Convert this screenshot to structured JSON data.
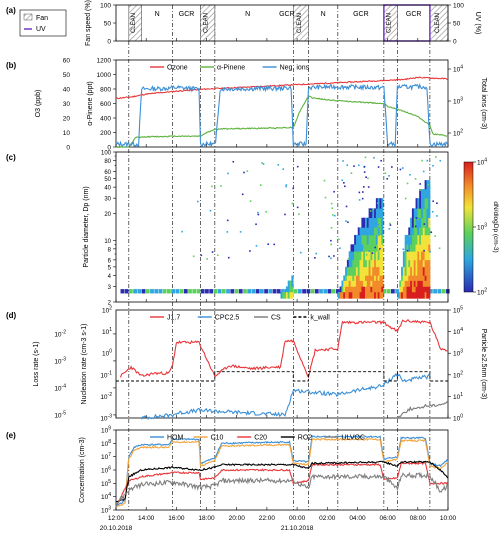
{
  "figure": {
    "date_labels": [
      "20.10.2018",
      "21.10.2018"
    ],
    "time_ticks": [
      "12:00",
      "14:00",
      "16:00",
      "18:00",
      "20:00",
      "22:00",
      "00:00",
      "02:00",
      "04:00",
      "06:00",
      "08:00",
      "10:00"
    ],
    "phase_boundaries_h": [
      12.85,
      15.75,
      17.6,
      18.55,
      23.75,
      24.75,
      26.7,
      29.75,
      30.65,
      32.8
    ]
  },
  "chart_data": [
    {
      "panel": "(a)",
      "type": "area",
      "y_left_label": "Fan speed (%)",
      "y_right_label": "UV (%)",
      "ylim": [
        0,
        100
      ],
      "yticks": [
        0,
        50,
        100
      ],
      "legend": [
        "Fan",
        "UV"
      ],
      "phases": [
        {
          "label": "CLEAN",
          "start": 12.85,
          "end": 13.7
        },
        {
          "label": "N",
          "start": 13.7,
          "end": 15.75
        },
        {
          "label": "GCR",
          "start": 15.75,
          "end": 17.6
        },
        {
          "label": "CLEAN",
          "start": 17.6,
          "end": 18.55
        },
        {
          "label": "N",
          "start": 18.55,
          "end": 22.9
        },
        {
          "label": "GCR",
          "start": 22.9,
          "end": 23.75
        },
        {
          "label": "CLEAN",
          "start": 23.75,
          "end": 24.75
        },
        {
          "label": "N",
          "start": 24.75,
          "end": 26.7
        },
        {
          "label": "GCR",
          "start": 26.7,
          "end": 29.75
        },
        {
          "label": "CLEAN",
          "start": 29.75,
          "end": 30.65
        },
        {
          "label": "GCR",
          "start": 30.65,
          "end": 32.8
        },
        {
          "label": "CLEAN",
          "start": 32.8,
          "end": 34.0
        }
      ],
      "fan_on_intervals": [
        [
          12.85,
          13.7
        ],
        [
          17.6,
          18.55
        ],
        [
          23.75,
          24.75
        ],
        [
          29.75,
          30.65
        ],
        [
          32.8,
          34.0
        ]
      ],
      "uv_on_interval": [
        29.75,
        32.8
      ]
    },
    {
      "panel": "(b)",
      "type": "line",
      "y_left_label": "O3 (ppb)",
      "y_left2_label": "α-Pinene (ppt)",
      "y_right_label": "Total ions (cm-3)",
      "ylim": [
        0,
        1200
      ],
      "yticks": [
        0,
        200,
        400,
        600,
        800,
        1000,
        1200
      ],
      "o3_ticks": [
        0,
        10,
        20,
        30,
        40,
        50,
        60
      ],
      "right_ticks": [
        "10^2",
        "10^3",
        "10^4"
      ],
      "series": [
        {
          "name": "Ozone",
          "color": "#e8363a",
          "x": [
            12.0,
            13.0,
            14.0,
            16.0,
            18.0,
            20.0,
            22.0,
            24.0,
            26.0,
            28.0,
            30.0,
            31.0,
            32.0,
            33.0,
            34.0
          ],
          "y": [
            670,
            690,
            730,
            770,
            800,
            820,
            840,
            860,
            880,
            900,
            920,
            930,
            960,
            950,
            940
          ]
        },
        {
          "name": "α-Pinene",
          "color": "#5cb23c",
          "x": [
            12.0,
            12.85,
            13.3,
            14.0,
            16.0,
            17.6,
            18.0,
            18.55,
            19.0,
            22.0,
            23.75,
            24.2,
            24.75,
            25.0,
            26.0,
            28.0,
            29.75,
            30.0,
            30.65,
            31.0,
            32.0,
            32.8,
            33.0,
            34.0
          ],
          "y": [
            0,
            0,
            130,
            140,
            150,
            150,
            200,
            240,
            250,
            260,
            270,
            500,
            700,
            680,
            650,
            620,
            600,
            560,
            520,
            500,
            420,
            300,
            180,
            150
          ]
        },
        {
          "name": "Neg. ions",
          "color": "#3b8fd6",
          "x": [
            12.0,
            13.5,
            13.7,
            15.5,
            15.75,
            16.0,
            17.5,
            17.6,
            18.6,
            18.9,
            22.5,
            22.9,
            23.6,
            23.75,
            24.0,
            24.6,
            24.75,
            26.5,
            26.7,
            29.5,
            29.75,
            30.0,
            30.5,
            30.65,
            32.6,
            32.8,
            33.5,
            34.0
          ],
          "y": [
            40,
            40,
            800,
            810,
            820,
            820,
            800,
            40,
            40,
            800,
            810,
            810,
            820,
            40,
            40,
            40,
            820,
            830,
            830,
            820,
            820,
            40,
            40,
            830,
            830,
            40,
            40,
            40
          ]
        }
      ]
    },
    {
      "panel": "(c)",
      "type": "heatmap",
      "y_label": "Particle diameter, Dp (nm)",
      "colorbar_label": "dN/dlogDp (cm-3)",
      "yticks": [
        "2",
        "3",
        "4",
        "5",
        "6",
        "7",
        "8",
        "9",
        "10",
        "20",
        "30",
        "40",
        "50",
        "60",
        "70",
        "80",
        "90",
        "100"
      ],
      "colorbar_ticks": [
        "10^2",
        "10^3",
        "10^4"
      ],
      "events": [
        {
          "start": 22.9,
          "end": 23.7,
          "dp_max": 4,
          "intensity": 0.6
        },
        {
          "start": 26.7,
          "end": 29.7,
          "dp_max": 30,
          "intensity": 0.9
        },
        {
          "start": 30.65,
          "end": 32.8,
          "dp_max": 50,
          "intensity": 1.0
        }
      ]
    },
    {
      "panel": "(d)",
      "type": "line",
      "y_left_label": "Loss rate (s-1)",
      "y_left2_label": "Nucleation rate (cm-3 s-1)",
      "y_right_label": "Particle ≥2.5nm (cm-3)",
      "ylim_log": [
        -5,
        2
      ],
      "yticks_left": [
        "10^-5",
        "10^-4",
        "10^-3",
        "10^-2"
      ],
      "yticks_left2": [
        "10^-3",
        "10^-2",
        "10^-1",
        "10^0",
        "10^1",
        "10^2"
      ],
      "yticks_right": [
        "10^0",
        "10^1",
        "10^2",
        "10^3",
        "10^4",
        "10^5"
      ],
      "series": [
        {
          "name": "J1.7",
          "color": "#e8363a",
          "x": [
            12.3,
            13.0,
            13.7,
            14.5,
            15.5,
            15.75,
            16.0,
            17.5,
            18.55,
            19.5,
            21.0,
            22.5,
            22.9,
            23.2,
            23.75,
            24.75,
            25.2,
            26.7,
            27.0,
            29.7,
            30.65,
            31.0,
            32.8,
            33.5,
            34.0
          ],
          "y": [
            -2.3,
            -1.7,
            -2.3,
            -2.1,
            -2.1,
            -1.6,
            -0.1,
            -0.1,
            -2.3,
            -1.6,
            -1.8,
            -1.7,
            -1.7,
            0.0,
            0.0,
            -2.3,
            -0.6,
            -0.5,
            1.2,
            1.2,
            0.6,
            1.3,
            1.2,
            -0.5,
            -0.6
          ]
        },
        {
          "name": "CPC2.5",
          "color": "#3b8fd6",
          "x": [
            13.7,
            15.75,
            16.0,
            17.5,
            23.2,
            23.75,
            26.7,
            27.5,
            29.7,
            30.65,
            31.0,
            32.8
          ],
          "y": [
            -5.0,
            -4.8,
            -4.7,
            -4.5,
            -4.8,
            -3.2,
            -3.5,
            -3.3,
            -2.9,
            -2.1,
            -2.6,
            -2.3
          ]
        },
        {
          "name": "CS",
          "color": "#7a7a7a",
          "x": [
            30.65,
            31.0,
            31.5,
            32.0,
            32.5,
            33.0,
            34.0
          ],
          "y": [
            -5.0,
            -4.7,
            -4.4,
            -4.4,
            -4.2,
            -4.2,
            -4.0
          ]
        },
        {
          "name": "k_wall",
          "color": "#000000",
          "x": [
            12.0,
            12.85,
            13.7,
            17.6,
            18.55,
            23.75,
            24.75,
            29.75,
            30.65,
            32.8,
            34.0
          ],
          "y": [
            -2.6,
            -2.6,
            -2.6,
            -2.6,
            -2.0,
            -2.6,
            -2.0,
            -2.6,
            -2.0,
            -2.6,
            -2.6
          ]
        }
      ]
    },
    {
      "panel": "(e)",
      "type": "line",
      "y_label": "Concentration (cm-3)",
      "ylim_log": [
        3,
        9
      ],
      "yticks": [
        "10^3",
        "10^4",
        "10^5",
        "10^6",
        "10^7",
        "10^8",
        "10^9"
      ],
      "series": [
        {
          "name": "HOM",
          "color": "#3b8fd6",
          "x": [
            12.0,
            12.6,
            12.85,
            13.2,
            13.7,
            15.5,
            15.75,
            17.5,
            17.6,
            18.55,
            19.0,
            23.5,
            23.75,
            24.75,
            25.0,
            29.5,
            29.75,
            30.65,
            30.9,
            32.5,
            32.8,
            33.5,
            34.0
          ],
          "y": [
            3.3,
            3.7,
            7.0,
            7.7,
            7.9,
            7.9,
            8.3,
            8.3,
            6.5,
            6.9,
            8.0,
            8.1,
            6.7,
            6.6,
            8.5,
            8.5,
            6.8,
            7.0,
            8.4,
            8.4,
            6.5,
            6.3,
            6.8
          ]
        },
        {
          "name": "C10",
          "color": "#f2a33a",
          "x": [
            12.0,
            12.6,
            12.85,
            13.2,
            13.7,
            15.5,
            15.75,
            17.5,
            17.6,
            18.55,
            19.0,
            23.5,
            23.75,
            24.75,
            25.0,
            29.5,
            29.75,
            30.65,
            30.9,
            32.5,
            32.8,
            33.5,
            34.0
          ],
          "y": [
            3.2,
            3.5,
            6.8,
            7.5,
            7.7,
            7.7,
            8.1,
            8.1,
            6.3,
            6.7,
            7.8,
            7.9,
            6.5,
            6.4,
            8.3,
            8.3,
            6.6,
            6.8,
            8.2,
            8.2,
            6.3,
            6.1,
            6.6
          ]
        },
        {
          "name": "C20",
          "color": "#e8363a",
          "x": [
            12.0,
            12.85,
            13.2,
            13.7,
            15.75,
            17.5,
            17.6,
            18.55,
            19.0,
            23.5,
            23.75,
            24.75,
            25.0,
            29.5,
            29.75,
            30.65,
            30.9,
            32.5,
            32.8,
            34.0
          ],
          "y": [
            3.2,
            5.2,
            5.3,
            5.5,
            5.8,
            5.8,
            5.3,
            5.4,
            6.0,
            6.0,
            5.0,
            5.2,
            6.4,
            6.4,
            5.3,
            5.4,
            6.5,
            6.5,
            5.0,
            5.0
          ]
        },
        {
          "name": "RO2",
          "color": "#000000",
          "x": [
            12.0,
            12.6,
            12.85,
            13.7,
            15.75,
            17.6,
            18.55,
            19.0,
            23.75,
            24.75,
            25.0,
            29.75,
            30.65,
            30.9,
            32.8,
            33.5,
            34.0
          ],
          "y": [
            3.6,
            3.8,
            5.5,
            6.0,
            6.2,
            6.0,
            6.2,
            6.4,
            6.4,
            6.1,
            6.5,
            6.6,
            6.3,
            6.6,
            6.6,
            6.0,
            5.4
          ]
        },
        {
          "name": "ULVOC",
          "color": "#808080",
          "x": [
            12.0,
            12.85,
            13.7,
            15.75,
            17.6,
            18.55,
            19.0,
            23.75,
            24.75,
            25.0,
            29.75,
            30.65,
            30.9,
            32.8,
            33.5,
            34.0
          ],
          "y": [
            3.4,
            4.5,
            4.9,
            5.1,
            4.7,
            4.8,
            5.2,
            5.2,
            4.6,
            5.5,
            5.5,
            4.6,
            5.6,
            5.6,
            4.4,
            4.8
          ]
        }
      ]
    }
  ]
}
